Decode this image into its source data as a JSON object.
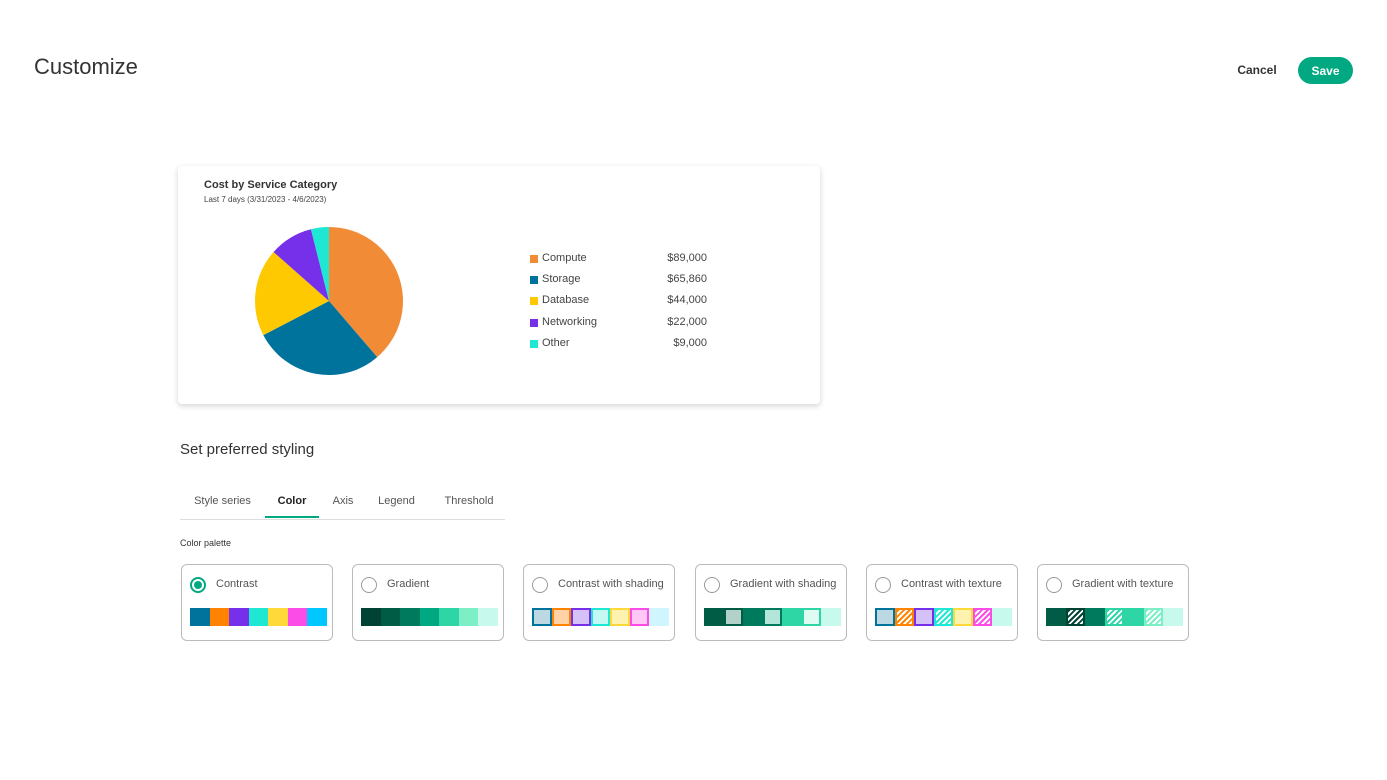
{
  "header": {
    "title": "Customize",
    "cancel_label": "Cancel",
    "save_label": "Save",
    "accent_color": "#01a982"
  },
  "chart_card": {
    "title": "Cost by Service Category",
    "subtitle": "Last 7 days (3/31/2023 - 4/6/2023)",
    "legend": [
      {
        "label": "Compute",
        "value": "$89,000",
        "color": "#f28b36"
      },
      {
        "label": "Storage",
        "value": "$65,860",
        "color": "#00739d"
      },
      {
        "label": "Database",
        "value": "$44,000",
        "color": "#fec901"
      },
      {
        "label": "Networking",
        "value": "$22,000",
        "color": "#7630ea"
      },
      {
        "label": "Other",
        "value": "$9,000",
        "color": "#1ee8d3"
      }
    ]
  },
  "chart_data": {
    "type": "pie",
    "categories": [
      "Compute",
      "Storage",
      "Database",
      "Networking",
      "Other"
    ],
    "values": [
      89000,
      65860,
      44000,
      22000,
      9000
    ],
    "colors": [
      "#f28b36",
      "#00739d",
      "#fec901",
      "#7630ea",
      "#1ee8d3"
    ]
  },
  "styling": {
    "heading": "Set preferred styling",
    "tabs": [
      {
        "label": "Style series",
        "active": false
      },
      {
        "label": "Color",
        "active": true
      },
      {
        "label": "Axis",
        "active": false
      },
      {
        "label": "Legend",
        "active": false
      },
      {
        "label": "Threshold",
        "active": false
      }
    ],
    "palette_label": "Color palette",
    "palettes": [
      {
        "name": "Contrast",
        "selected": true,
        "swatches": [
          "#00739d",
          "#ff8300",
          "#7630ea",
          "#1ee8d3",
          "#fed939",
          "#fc4ce8",
          "#00c8ff"
        ]
      },
      {
        "name": "Gradient",
        "selected": false,
        "swatches": [
          "#004233",
          "#005c45",
          "#007a5c",
          "#01a982",
          "#2ed6a6",
          "#7cefc7",
          "#c7faec"
        ]
      },
      {
        "name": "Contrast with shading",
        "selected": false,
        "swatches": [
          "#bcd8e3",
          "#ffd2a8",
          "#d5c1f7",
          "#c6f8f3",
          "#fef2b0",
          "#fec7f6",
          "#d1f5ff"
        ]
      },
      {
        "name": "Gradient with shading",
        "selected": false,
        "swatches": [
          "#005c45",
          "#b2d1c8",
          "#007a5c",
          "#b3e6d9",
          "#2ed6a6",
          "#dffbf2",
          "#c7faec"
        ]
      },
      {
        "name": "Contrast with texture",
        "selected": false,
        "swatches": [
          "#bcd8e3",
          "#ff8300",
          "#d5c1f7",
          "#1ee8d3",
          "#fef2b0",
          "#fc4ce8",
          "#c7faec"
        ]
      },
      {
        "name": "Gradient with texture",
        "selected": false,
        "swatches": [
          "#005c45",
          "#007a5c",
          "#007a5c",
          "#01a982",
          "#2ed6a6",
          "#7cefc7",
          "#c7faec"
        ]
      }
    ]
  }
}
